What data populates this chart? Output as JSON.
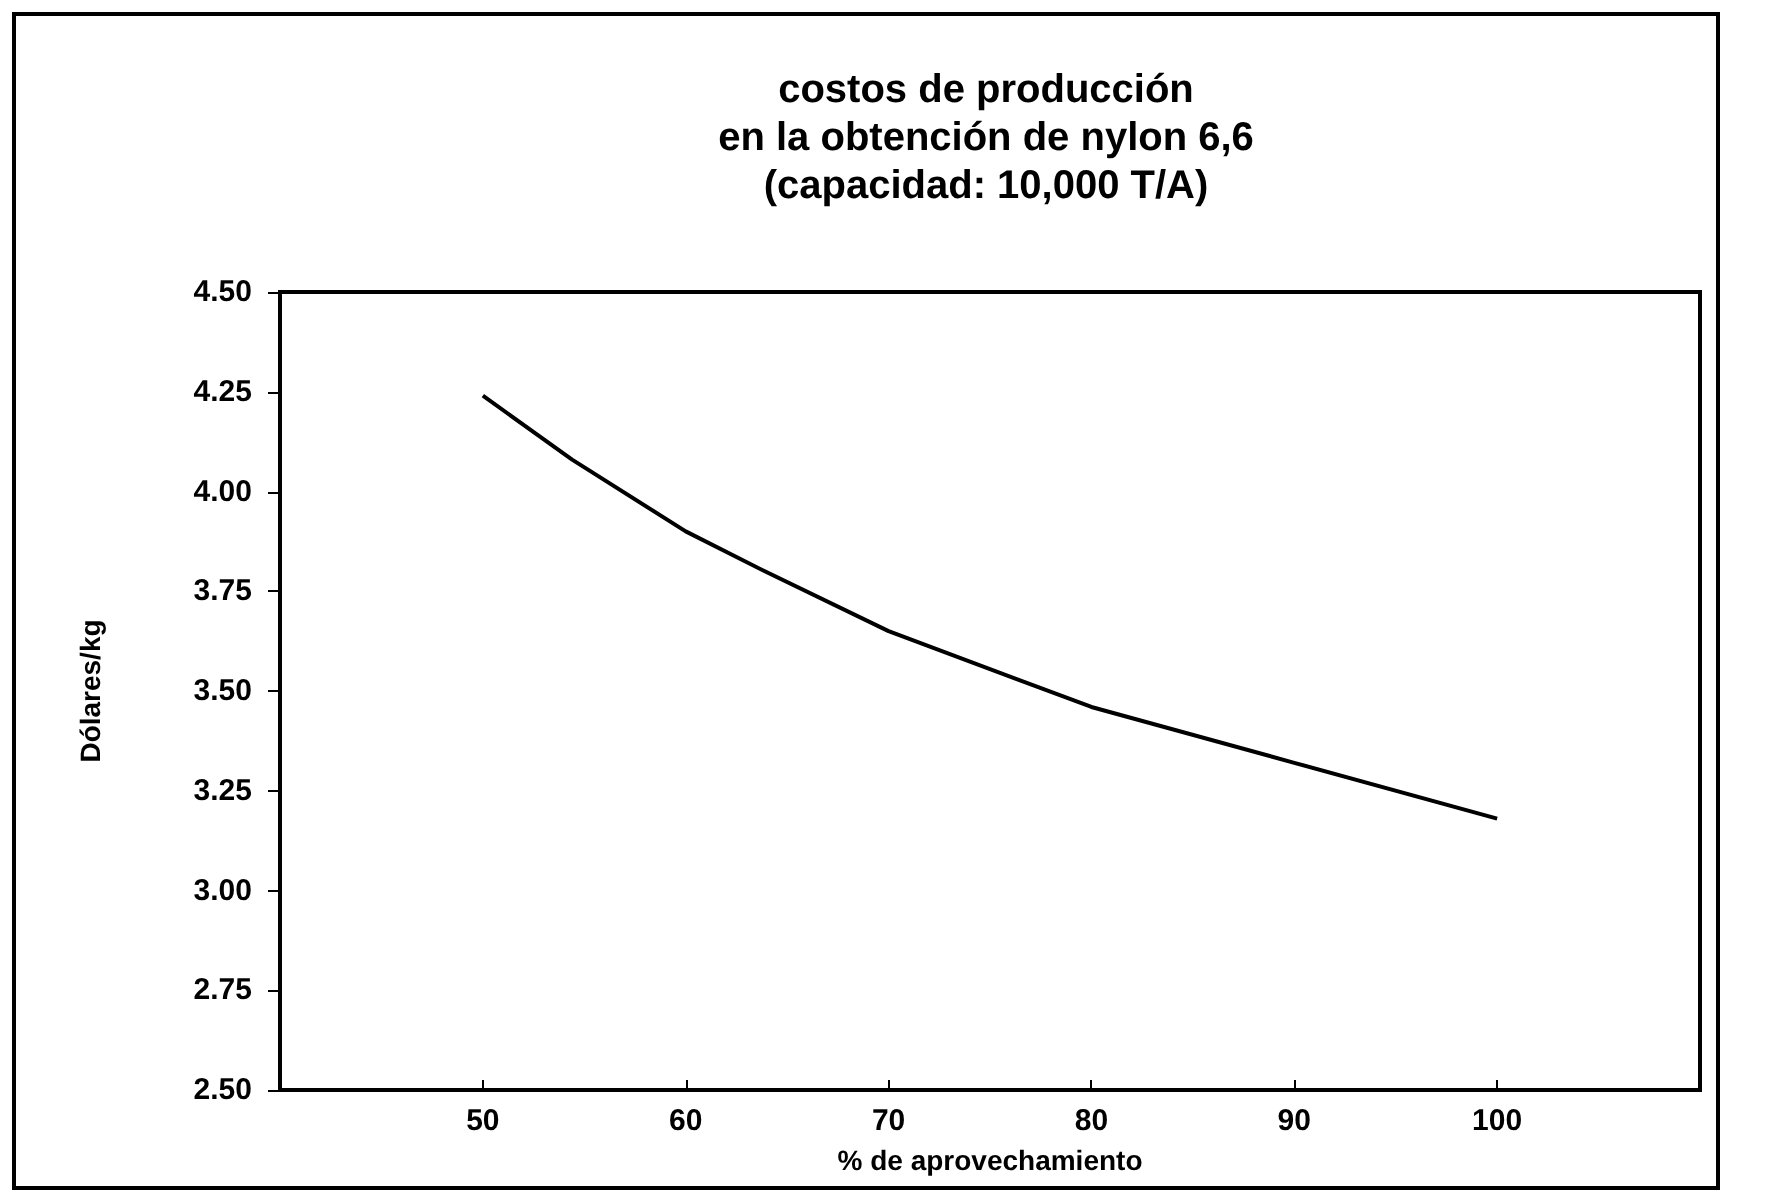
{
  "chart_data": {
    "type": "line",
    "title": "costos de producción\nen la obtención de nylon 6,6\n(capacidad: 10,000 T/A)",
    "xlabel": "% de aprovechamiento",
    "ylabel": "Dólares/kg",
    "x": [
      50,
      54.4,
      60,
      63.9,
      70,
      80,
      90,
      100
    ],
    "series": [
      {
        "color": "#000000",
        "values": [
          4.24,
          4.08,
          3.9,
          3.8,
          3.65,
          3.46,
          3.32,
          3.18
        ]
      }
    ],
    "xlim": [
      40,
      110
    ],
    "xticks": [
      50,
      60,
      70,
      80,
      90,
      100
    ],
    "ylim": [
      2.5,
      4.5
    ],
    "yticks": [
      {
        "value": 2.5,
        "label": "2.50"
      },
      {
        "value": 2.75,
        "label": "2.75"
      },
      {
        "value": 3,
        "label": "3.00"
      },
      {
        "value": 3.25,
        "label": "3.25"
      },
      {
        "value": 3.5,
        "label": "3.50"
      },
      {
        "value": 3.75,
        "label": "3.75"
      },
      {
        "value": 4,
        "label": "4.00"
      },
      {
        "value": 4.25,
        "label": "4.25"
      },
      {
        "value": 4.5,
        "label": "4.50"
      }
    ],
    "grid": false,
    "marker": "none",
    "line_style": "solid"
  }
}
